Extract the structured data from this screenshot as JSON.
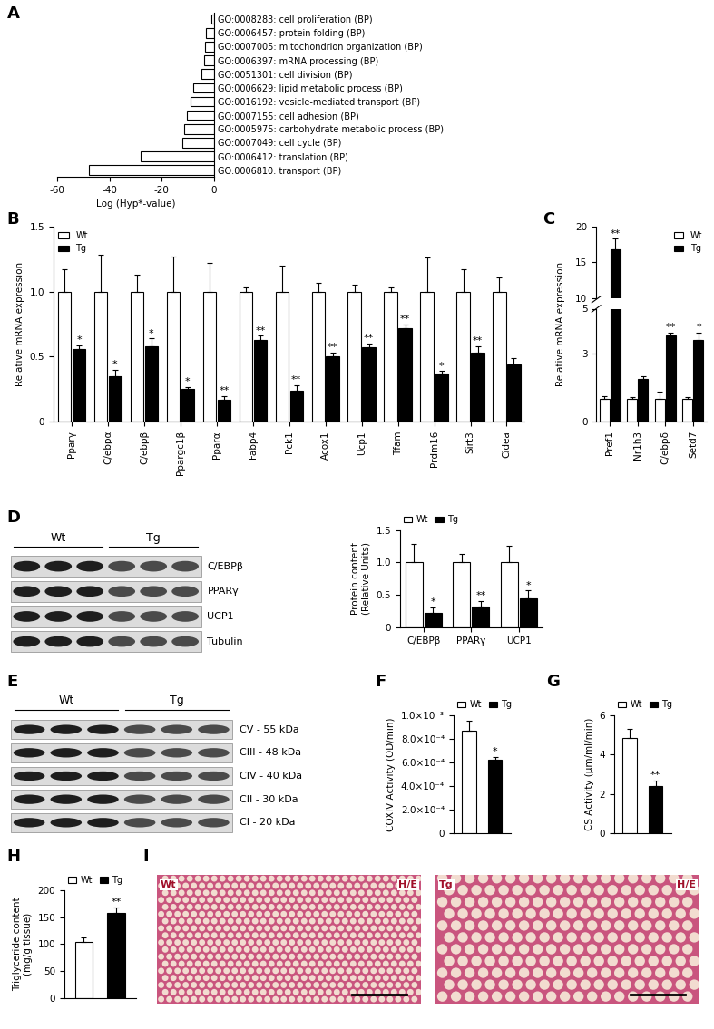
{
  "chart_data": [
    {
      "label": "A",
      "type": "bar",
      "orientation": "horizontal",
      "xlabel": "Log (Hyp*-value)",
      "categories": [
        "GO:0008283: cell proliferation (BP)",
        "GO:0006457: protein folding (BP)",
        "GO:0007005: mitochondrion organization (BP)",
        "GO:0006397: mRNA processing (BP)",
        "GO:0051301: cell division (BP)",
        "GO:0006629: lipid metabolic process (BP)",
        "GO:0016192: vesicle-mediated transport (BP)",
        "GO:0007155: cell adhesion (BP)",
        "GO:0005975: carbohydrate metabolic process (BP)",
        "GO:0007049: cell cycle (BP)",
        "GO:0006412: translation (BP)",
        "GO:0006810: transport (BP)"
      ],
      "values": [
        -1.2,
        -3,
        -3.5,
        -4,
        -5,
        -8,
        -9,
        -10.5,
        -11.5,
        -12,
        -28,
        -48
      ],
      "color": "#ffffff",
      "xlim": [
        -60,
        0
      ],
      "xticks": [
        -60,
        -40,
        -20,
        0
      ]
    },
    {
      "label": "B",
      "type": "bar",
      "ylabel": "Relative mRNA expression",
      "categories": [
        "Pparγ",
        "C/ebpα",
        "C/ebpβ",
        "Ppargc1β",
        "Pparα",
        "Fabp4",
        "Pck1",
        "Acox1",
        "Ucp1",
        "Tfam",
        "Prdm16",
        "Sirt3",
        "Cidea"
      ],
      "series": [
        {
          "name": "Wt",
          "color": "#ffffff",
          "values": [
            1.0,
            1.0,
            1.0,
            1.0,
            1.0,
            1.0,
            1.0,
            1.0,
            1.0,
            1.0,
            1.0,
            1.0,
            1.0
          ],
          "errors": [
            0.17,
            0.28,
            0.13,
            0.27,
            0.22,
            0.03,
            0.2,
            0.07,
            0.05,
            0.03,
            0.26,
            0.17,
            0.11
          ]
        },
        {
          "name": "Tg",
          "color": "#000000",
          "values": [
            0.56,
            0.35,
            0.58,
            0.25,
            0.17,
            0.63,
            0.24,
            0.5,
            0.57,
            0.72,
            0.37,
            0.53,
            0.44
          ],
          "errors": [
            0.03,
            0.05,
            0.06,
            0.02,
            0.03,
            0.03,
            0.04,
            0.03,
            0.03,
            0.03,
            0.02,
            0.05,
            0.05
          ],
          "significance": [
            "*",
            "*",
            "*",
            "*",
            "**",
            "**",
            "**",
            "**",
            "**",
            "**",
            "*",
            "**",
            null
          ]
        }
      ],
      "ylim": [
        0,
        1.5
      ],
      "yticks": [
        0,
        0.5,
        1.0,
        1.5
      ],
      "legend": "upper left"
    },
    {
      "label": "C",
      "type": "bar",
      "ylabel": "Relative mRNA expression",
      "categories": [
        "Pref1",
        "Nr1h3",
        "C/ebpδ",
        "Setd7"
      ],
      "series": [
        {
          "name": "Wt",
          "color": "#ffffff",
          "values": [
            1.0,
            1.0,
            1.0,
            1.0
          ],
          "errors": [
            0.15,
            0.1,
            0.35,
            0.1
          ]
        },
        {
          "name": "Tg",
          "color": "#000000",
          "values": [
            16.8,
            1.9,
            3.8,
            3.6
          ],
          "errors": [
            1.5,
            0.1,
            0.15,
            0.35
          ],
          "significance": [
            "**",
            null,
            "**",
            "*"
          ]
        }
      ],
      "ylim": [
        0,
        20
      ],
      "axis_break": [
        5,
        10
      ],
      "yticks": [
        0,
        3,
        5,
        10,
        15,
        20
      ],
      "legend": "upper right"
    },
    {
      "label": "D",
      "type": "western_blot",
      "groups": [
        "Wt",
        "Tg"
      ],
      "lanes_per_group": 3,
      "rows": [
        "C/EBPβ",
        "PPARγ",
        "UCP1",
        "Tubulin"
      ]
    },
    {
      "type": "bar",
      "ylabel": "Protein content\n(Relative Units)",
      "categories": [
        "C/EBPβ",
        "PPARγ",
        "UCP1"
      ],
      "series": [
        {
          "name": "Wt",
          "color": "#ffffff",
          "values": [
            1.0,
            1.0,
            1.0
          ],
          "errors": [
            0.28,
            0.13,
            0.25
          ]
        },
        {
          "name": "Tg",
          "color": "#000000",
          "values": [
            0.23,
            0.33,
            0.45
          ],
          "errors": [
            0.08,
            0.08,
            0.12
          ],
          "significance": [
            "*",
            "**",
            "*"
          ]
        }
      ],
      "ylim": [
        0,
        1.5
      ],
      "yticks": [
        0,
        0.5,
        1.0,
        1.5
      ],
      "legend": "upper left"
    },
    {
      "label": "E",
      "type": "western_blot",
      "groups": [
        "Wt",
        "Tg"
      ],
      "lanes_per_group": 3,
      "rows": [
        "CV - 55 kDa",
        "CIII - 48 kDa",
        "CIV - 40 kDa",
        "CII - 30 kDa",
        "CI - 20 kDa"
      ]
    },
    {
      "label": "F",
      "type": "bar",
      "ylabel": "COXIV Activity (OD/min)",
      "series": [
        {
          "name": "Wt",
          "color": "#ffffff",
          "values": [
            0.00087
          ],
          "errors": [
            8e-05
          ]
        },
        {
          "name": "Tg",
          "color": "#000000",
          "values": [
            0.00062
          ],
          "errors": [
            3e-05
          ],
          "significance": [
            "*"
          ]
        }
      ],
      "ylim": [
        0,
        0.001
      ],
      "yticks": [
        0,
        {
          "value": 0.0002,
          "label": "2.0×10⁻⁴"
        },
        {
          "value": 0.0004,
          "label": "4.0×10⁻⁴"
        },
        {
          "value": 0.0006,
          "label": "6.0×10⁻⁴"
        },
        {
          "value": 0.0008,
          "label": "8.0×10⁻⁴"
        },
        {
          "value": 0.001,
          "label": "1.0×10⁻³"
        }
      ],
      "tick_labels": "y",
      "legend": "upper left"
    },
    {
      "label": "G",
      "type": "bar",
      "ylabel": "CS Activity (μm/ml/min)",
      "series": [
        {
          "name": "Wt",
          "color": "#ffffff",
          "values": [
            4.85
          ],
          "errors": [
            0.45
          ]
        },
        {
          "name": "Tg",
          "color": "#000000",
          "values": [
            2.4
          ],
          "errors": [
            0.3
          ],
          "significance": [
            "**"
          ]
        }
      ],
      "ylim": [
        0,
        6
      ],
      "yticks": [
        0,
        2,
        4,
        6
      ],
      "tick_labels": "y",
      "legend": "upper left"
    },
    {
      "label": "H",
      "type": "bar",
      "ylabel": "Triglyceride content\n(mg/g tissue)",
      "series": [
        {
          "name": "Wt",
          "color": "#ffffff",
          "values": [
            104
          ],
          "errors": [
            8
          ]
        },
        {
          "name": "Tg",
          "color": "#000000",
          "values": [
            158
          ],
          "errors": [
            10
          ],
          "significance": [
            "**"
          ]
        }
      ],
      "ylim": [
        0,
        200
      ],
      "yticks": [
        0,
        50,
        100,
        150,
        200
      ],
      "tick_labels": "y",
      "legend": "upper left"
    },
    {
      "label": "I",
      "type": "histology",
      "panels": [
        {
          "group": "Wt",
          "stain": "H/E"
        },
        {
          "group": "Tg",
          "stain": "H/E"
        }
      ]
    }
  ]
}
